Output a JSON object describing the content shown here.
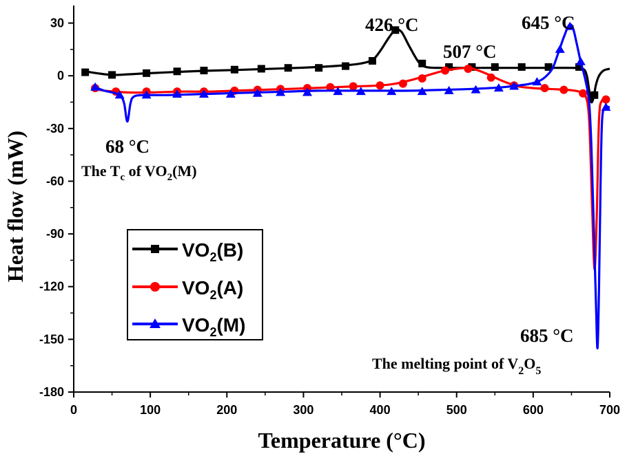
{
  "chart_data": {
    "type": "line",
    "title": "",
    "xlabel": "Temperature (°C)",
    "ylabel": "Heat flow (mW)",
    "xlim": [
      0,
      700
    ],
    "ylim": [
      -180,
      40
    ],
    "xticks": [
      0,
      100,
      200,
      300,
      400,
      500,
      600,
      700
    ],
    "yticks": [
      -180,
      -150,
      -120,
      -90,
      -60,
      -30,
      0,
      30
    ],
    "xtick_labels": [
      "0",
      "100",
      "200",
      "300",
      "400",
      "500",
      "600",
      "700"
    ],
    "ytick_labels": [
      "-180",
      "-150",
      "-120",
      "-90",
      "-60",
      "-30",
      "0",
      "30"
    ],
    "legend_position": "lower-left",
    "series": [
      {
        "name": "VO2(B)",
        "label_main": "VO",
        "label_sub": "2",
        "label_rest": "(B)",
        "color": "#000000",
        "marker": "square",
        "line": [
          [
            15,
            2.5
          ],
          [
            30,
            1.5
          ],
          [
            50,
            0.5
          ],
          [
            70,
            0.8
          ],
          [
            100,
            1.5
          ],
          [
            135,
            2.2
          ],
          [
            170,
            2.8
          ],
          [
            210,
            3.3
          ],
          [
            245,
            3.8
          ],
          [
            280,
            4.3
          ],
          [
            320,
            5
          ],
          [
            355,
            6
          ],
          [
            375,
            7
          ],
          [
            390,
            9
          ],
          [
            400,
            14
          ],
          [
            412,
            22
          ],
          [
            420,
            26
          ],
          [
            428,
            25
          ],
          [
            438,
            17
          ],
          [
            450,
            8
          ],
          [
            460,
            5
          ],
          [
            480,
            4.5
          ],
          [
            500,
            4.5
          ],
          [
            540,
            4.5
          ],
          [
            580,
            4.5
          ],
          [
            620,
            4.5
          ],
          [
            650,
            4.5
          ],
          [
            665,
            4
          ],
          [
            670,
            0
          ],
          [
            673,
            -8
          ],
          [
            676,
            -15
          ],
          [
            679,
            -12
          ],
          [
            682,
            -5
          ],
          [
            686,
            0
          ],
          [
            692,
            3
          ],
          [
            700,
            4
          ]
        ],
        "markers": [
          [
            15,
            2
          ],
          [
            50,
            0.5
          ],
          [
            95,
            1.5
          ],
          [
            135,
            2.5
          ],
          [
            170,
            3
          ],
          [
            210,
            3.5
          ],
          [
            245,
            4
          ],
          [
            280,
            4.5
          ],
          [
            320,
            4.5
          ],
          [
            355,
            5.5
          ],
          [
            390,
            8.5
          ],
          [
            420,
            26
          ],
          [
            455,
            7
          ],
          [
            490,
            5
          ],
          [
            520,
            5
          ],
          [
            550,
            5
          ],
          [
            585,
            5
          ],
          [
            620,
            5
          ],
          [
            660,
            5
          ],
          [
            680,
            -11
          ]
        ]
      },
      {
        "name": "VO2(A)",
        "label_main": "VO",
        "label_sub": "2",
        "label_rest": "(A)",
        "color": "#ff0000",
        "marker": "circle",
        "line": [
          [
            28,
            -7.5
          ],
          [
            40,
            -8.5
          ],
          [
            55,
            -9
          ],
          [
            70,
            -9.5
          ],
          [
            100,
            -9.5
          ],
          [
            140,
            -9
          ],
          [
            175,
            -9
          ],
          [
            210,
            -8.5
          ],
          [
            245,
            -8
          ],
          [
            280,
            -7.5
          ],
          [
            310,
            -7
          ],
          [
            340,
            -6.5
          ],
          [
            370,
            -6
          ],
          [
            400,
            -5.5
          ],
          [
            420,
            -4.5
          ],
          [
            440,
            -2.5
          ],
          [
            460,
            0
          ],
          [
            480,
            2.5
          ],
          [
            500,
            4
          ],
          [
            515,
            4.5
          ],
          [
            525,
            3.5
          ],
          [
            540,
            1
          ],
          [
            560,
            -3
          ],
          [
            580,
            -6
          ],
          [
            600,
            -7
          ],
          [
            620,
            -7.5
          ],
          [
            645,
            -8
          ],
          [
            660,
            -9
          ],
          [
            668,
            -11
          ],
          [
            673,
            -25
          ],
          [
            677,
            -75
          ],
          [
            680,
            -110
          ],
          [
            683,
            -80
          ],
          [
            686,
            -25
          ],
          [
            690,
            -14
          ],
          [
            697,
            -13.5
          ],
          [
            700,
            -14
          ]
        ],
        "markers": [
          [
            28,
            -7
          ],
          [
            55,
            -9
          ],
          [
            95,
            -9
          ],
          [
            135,
            -9
          ],
          [
            170,
            -9
          ],
          [
            210,
            -8.5
          ],
          [
            240,
            -8
          ],
          [
            270,
            -7.5
          ],
          [
            305,
            -7
          ],
          [
            335,
            -6.5
          ],
          [
            365,
            -6
          ],
          [
            400,
            -5.5
          ],
          [
            430,
            -4.5
          ],
          [
            455,
            -1.5
          ],
          [
            485,
            3
          ],
          [
            515,
            4
          ],
          [
            545,
            -1
          ],
          [
            575,
            -5.5
          ],
          [
            615,
            -7
          ],
          [
            640,
            -8
          ],
          [
            665,
            -10
          ],
          [
            695,
            -13.5
          ]
        ]
      },
      {
        "name": "VO2(M)",
        "label_main": "VO",
        "label_sub": "2",
        "label_rest": "(M)",
        "color": "#0000ff",
        "marker": "triangle",
        "line": [
          [
            28,
            -6.5
          ],
          [
            40,
            -8.5
          ],
          [
            55,
            -10
          ],
          [
            62,
            -12
          ],
          [
            66,
            -16
          ],
          [
            70,
            -26
          ],
          [
            74,
            -16
          ],
          [
            78,
            -12
          ],
          [
            90,
            -11
          ],
          [
            120,
            -11
          ],
          [
            160,
            -10.5
          ],
          [
            200,
            -10
          ],
          [
            240,
            -9.5
          ],
          [
            280,
            -9
          ],
          [
            320,
            -8.5
          ],
          [
            360,
            -8.5
          ],
          [
            400,
            -8.5
          ],
          [
            440,
            -8.5
          ],
          [
            480,
            -8
          ],
          [
            520,
            -7.5
          ],
          [
            560,
            -6.5
          ],
          [
            590,
            -5
          ],
          [
            605,
            -3.5
          ],
          [
            615,
            -1
          ],
          [
            625,
            4
          ],
          [
            632,
            12
          ],
          [
            640,
            22
          ],
          [
            647,
            29
          ],
          [
            652,
            27
          ],
          [
            657,
            18
          ],
          [
            662,
            8
          ],
          [
            668,
            -2
          ],
          [
            673,
            -15
          ],
          [
            676,
            -40
          ],
          [
            679,
            -85
          ],
          [
            682,
            -130
          ],
          [
            684,
            -155
          ],
          [
            686,
            -120
          ],
          [
            688,
            -60
          ],
          [
            690,
            -25
          ],
          [
            694,
            -18
          ],
          [
            700,
            -18
          ]
        ],
        "markers": [
          [
            28,
            -6.5
          ],
          [
            60,
            -11
          ],
          [
            95,
            -11
          ],
          [
            135,
            -10.5
          ],
          [
            170,
            -10.5
          ],
          [
            205,
            -10.5
          ],
          [
            240,
            -10
          ],
          [
            270,
            -9.5
          ],
          [
            305,
            -9.5
          ],
          [
            345,
            -9
          ],
          [
            375,
            -9
          ],
          [
            415,
            -9
          ],
          [
            455,
            -9
          ],
          [
            490,
            -8.5
          ],
          [
            525,
            -8
          ],
          [
            555,
            -7
          ],
          [
            575,
            -6
          ],
          [
            605,
            -3.5
          ],
          [
            635,
            15
          ],
          [
            648,
            28
          ],
          [
            662,
            8
          ],
          [
            695,
            -18
          ]
        ]
      }
    ],
    "annotations": [
      {
        "id": "426",
        "text": "426 °C"
      },
      {
        "id": "507",
        "text": "507 °C"
      },
      {
        "id": "645",
        "text": "645 °C"
      },
      {
        "id": "68",
        "text": "68 °C"
      },
      {
        "id": "tc",
        "prefix": "The T",
        "sub1": "c",
        "mid": " of VO",
        "sub2": "2",
        "suffix": "(M)"
      },
      {
        "id": "685",
        "text": "685 °C"
      },
      {
        "id": "melt",
        "prefix": "The melting point of V",
        "sub1": "2",
        "mid": "O",
        "sub2": "5"
      }
    ]
  }
}
